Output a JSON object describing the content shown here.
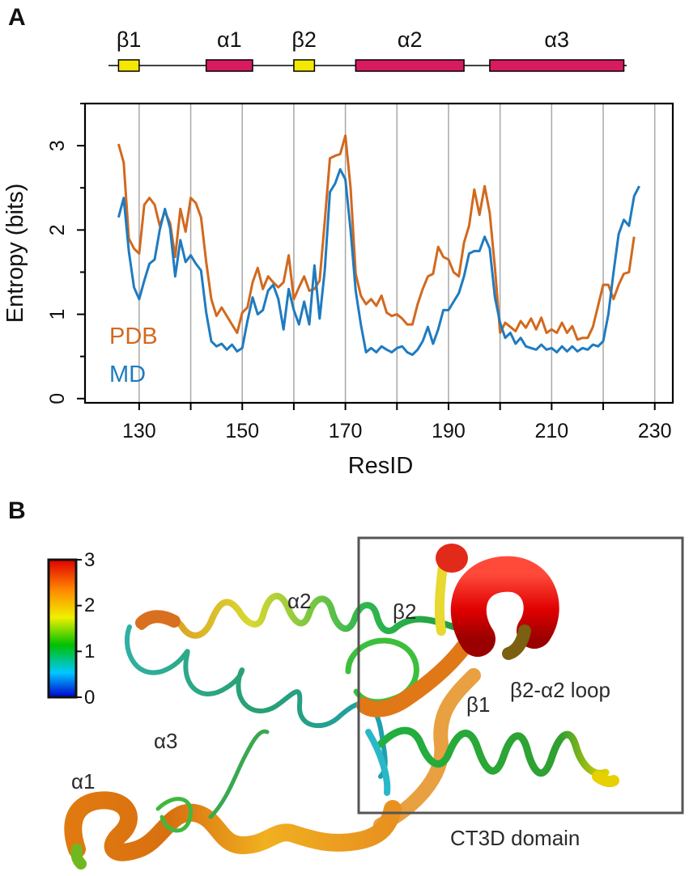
{
  "panels": {
    "a": "A",
    "b": "B"
  },
  "colors": {
    "pdb": "#d2691e",
    "md": "#1f7bc0",
    "helix": "#d81b60",
    "strand": "#f5e800"
  },
  "secondary_structure": [
    {
      "label": "β1",
      "type": "strand",
      "start": 126,
      "end": 130
    },
    {
      "label": "α1",
      "type": "helix",
      "start": 143,
      "end": 152
    },
    {
      "label": "β2",
      "type": "strand",
      "start": 160,
      "end": 164
    },
    {
      "label": "α2",
      "type": "helix",
      "start": 172,
      "end": 193
    },
    {
      "label": "α3",
      "type": "helix",
      "start": 198,
      "end": 224
    }
  ],
  "chart_data": {
    "type": "line",
    "title": "",
    "xlabel": "ResID",
    "ylabel": "Entropy (bits)",
    "xlim": [
      119.5,
      233.5
    ],
    "ylim": [
      -0.05,
      3.5
    ],
    "xticks": [
      130,
      150,
      170,
      190,
      210,
      230
    ],
    "yticks": [
      0,
      1,
      2,
      3
    ],
    "grid_x": [
      130,
      140,
      150,
      160,
      170,
      180,
      190,
      200,
      210,
      220,
      230
    ],
    "legend_position": "bottom-left",
    "series": [
      {
        "name": "PDB",
        "x": [
          126,
          127,
          128,
          129,
          130,
          131,
          132,
          133,
          134,
          135,
          136,
          137,
          138,
          139,
          140,
          141,
          142,
          143,
          144,
          145,
          146,
          147,
          148,
          149,
          150,
          151,
          152,
          153,
          154,
          155,
          156,
          157,
          158,
          159,
          160,
          161,
          162,
          163,
          164,
          165,
          166,
          167,
          168,
          169,
          170,
          171,
          172,
          173,
          174,
          175,
          176,
          177,
          178,
          179,
          180,
          181,
          182,
          183,
          184,
          185,
          186,
          187,
          188,
          189,
          190,
          191,
          192,
          193,
          194,
          195,
          196,
          197,
          198,
          199,
          200,
          201,
          202,
          203,
          204,
          205,
          206,
          207,
          208,
          209,
          210,
          211,
          212,
          213,
          214,
          215,
          216,
          217,
          218,
          219,
          220,
          221,
          222,
          223,
          224,
          225,
          226
        ],
        "values": [
          3.02,
          2.8,
          1.9,
          1.78,
          1.72,
          2.3,
          2.38,
          2.3,
          2.05,
          2.22,
          2.08,
          1.68,
          2.25,
          1.98,
          2.38,
          2.32,
          2.15,
          1.62,
          1.18,
          0.98,
          1.08,
          0.98,
          0.88,
          0.78,
          1.02,
          1.08,
          1.38,
          1.55,
          1.3,
          1.45,
          1.38,
          1.32,
          1.38,
          1.7,
          1.18,
          1.32,
          1.45,
          1.28,
          1.3,
          1.4,
          2.1,
          2.85,
          2.88,
          2.9,
          3.12,
          2.5,
          1.48,
          1.22,
          1.12,
          1.18,
          1.1,
          1.22,
          1.02,
          0.98,
          1.0,
          0.95,
          0.88,
          0.88,
          1.12,
          1.3,
          1.45,
          1.48,
          1.8,
          1.68,
          1.65,
          1.5,
          1.45,
          1.85,
          2.05,
          2.48,
          2.18,
          2.52,
          2.2,
          1.55,
          0.78,
          0.9,
          0.85,
          0.8,
          0.92,
          0.84,
          0.95,
          0.82,
          0.96,
          0.78,
          0.82,
          0.78,
          0.9,
          0.78,
          0.86,
          0.7,
          0.72,
          0.72,
          0.85,
          1.1,
          1.35,
          1.35,
          1.18,
          1.35,
          1.48,
          1.5,
          1.92
        ]
      },
      {
        "name": "MD",
        "x": [
          126,
          127,
          128,
          129,
          130,
          131,
          132,
          133,
          134,
          135,
          136,
          137,
          138,
          139,
          140,
          141,
          142,
          143,
          144,
          145,
          146,
          147,
          148,
          149,
          150,
          151,
          152,
          153,
          154,
          155,
          156,
          157,
          158,
          159,
          160,
          161,
          162,
          163,
          164,
          165,
          166,
          167,
          168,
          169,
          170,
          171,
          172,
          173,
          174,
          175,
          176,
          177,
          178,
          179,
          180,
          181,
          182,
          183,
          184,
          185,
          186,
          187,
          188,
          189,
          190,
          191,
          192,
          193,
          194,
          195,
          196,
          197,
          198,
          199,
          200,
          201,
          202,
          203,
          204,
          205,
          206,
          207,
          208,
          209,
          210,
          211,
          212,
          213,
          214,
          215,
          216,
          217,
          218,
          219,
          220,
          221,
          222,
          223,
          224,
          225,
          226,
          227
        ],
        "values": [
          2.15,
          2.38,
          1.75,
          1.32,
          1.18,
          1.4,
          1.6,
          1.65,
          2.0,
          2.25,
          2.02,
          1.45,
          1.88,
          1.62,
          1.7,
          1.6,
          1.52,
          1.02,
          0.68,
          0.62,
          0.65,
          0.58,
          0.64,
          0.56,
          0.6,
          0.92,
          1.2,
          1.0,
          1.05,
          1.28,
          1.35,
          1.18,
          0.82,
          1.3,
          1.05,
          0.88,
          1.15,
          0.88,
          1.58,
          0.95,
          1.52,
          2.45,
          2.55,
          2.72,
          2.6,
          2.0,
          1.28,
          0.88,
          0.55,
          0.6,
          0.55,
          0.62,
          0.58,
          0.55,
          0.6,
          0.62,
          0.55,
          0.52,
          0.58,
          0.68,
          0.85,
          0.65,
          0.82,
          1.05,
          1.05,
          1.15,
          1.25,
          1.45,
          1.72,
          1.75,
          1.75,
          1.92,
          1.78,
          1.2,
          0.9,
          0.72,
          0.78,
          0.65,
          0.72,
          0.62,
          0.6,
          0.58,
          0.64,
          0.58,
          0.6,
          0.55,
          0.62,
          0.56,
          0.62,
          0.56,
          0.6,
          0.58,
          0.64,
          0.62,
          0.68,
          1.0,
          1.5,
          1.95,
          2.12,
          2.05,
          2.4,
          2.52
        ]
      }
    ]
  },
  "structure": {
    "labels": [
      "α2",
      "β2",
      "β1",
      "β2-α2 loop",
      "α3",
      "α1"
    ],
    "box_label": "CT3D domain",
    "colorbar": {
      "ticks": [
        "3",
        "2",
        "1",
        "0"
      ],
      "min": 0,
      "max": 3
    }
  }
}
